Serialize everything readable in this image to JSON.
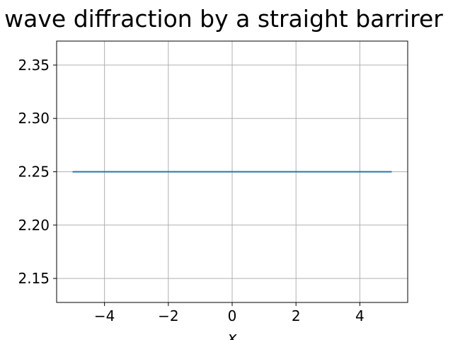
{
  "chart_data": {
    "type": "line",
    "title": "wave diffraction by a straight barrirer",
    "xlabel": "x",
    "ylabel": "",
    "xlim": [
      -5.5,
      5.5
    ],
    "ylim": [
      2.1275,
      2.3725
    ],
    "xticks": [
      -4,
      -2,
      0,
      2,
      4
    ],
    "xtick_labels": [
      "−4",
      "−2",
      "0",
      "2",
      "4"
    ],
    "yticks": [
      2.15,
      2.2,
      2.25,
      2.3,
      2.35
    ],
    "ytick_labels": [
      "2.15",
      "2.20",
      "2.25",
      "2.30",
      "2.35"
    ],
    "grid": true,
    "series": [
      {
        "color": "#1f77b4",
        "x": [
          -5,
          5
        ],
        "y": [
          2.25,
          2.25
        ]
      }
    ]
  }
}
